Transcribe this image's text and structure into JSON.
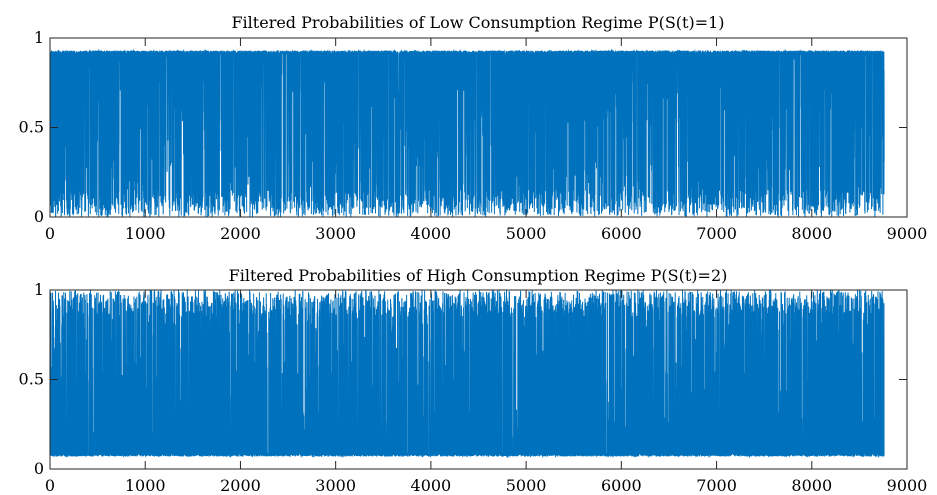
{
  "chart_data": [
    {
      "type": "line",
      "title": "Filtered Probabilities of Low Consumption Regime P(S(t)=1)",
      "xlabel": "",
      "ylabel": "",
      "xlim": [
        0,
        9000
      ],
      "ylim": [
        0,
        1
      ],
      "xticks": [
        "0",
        "1000",
        "2000",
        "3000",
        "4000",
        "5000",
        "6000",
        "7000",
        "8000",
        "9000"
      ],
      "yticks": [
        "0",
        "0.5",
        "1"
      ],
      "grid": false,
      "series": [
        {
          "color": "#0072BD",
          "n_points": 8760,
          "x_range": [
            1,
            8760
          ],
          "y_min": 0.0,
          "y_max": 0.93,
          "y_typical_high": 0.93
        }
      ]
    },
    {
      "type": "line",
      "title": "Filtered Probabilities of High Consumption Regime P(S(t)=2)",
      "xlabel": "",
      "ylabel": "",
      "xlim": [
        0,
        9000
      ],
      "ylim": [
        0,
        1
      ],
      "xticks": [
        "0",
        "1000",
        "2000",
        "3000",
        "4000",
        "5000",
        "6000",
        "7000",
        "8000",
        "9000"
      ],
      "yticks": [
        "0",
        "0.5",
        "1"
      ],
      "grid": false,
      "series": [
        {
          "color": "#0072BD",
          "n_points": 8760,
          "x_range": [
            1,
            8760
          ],
          "y_min": 0.07,
          "y_max": 1.0,
          "y_typical_low": 0.07
        }
      ]
    }
  ]
}
